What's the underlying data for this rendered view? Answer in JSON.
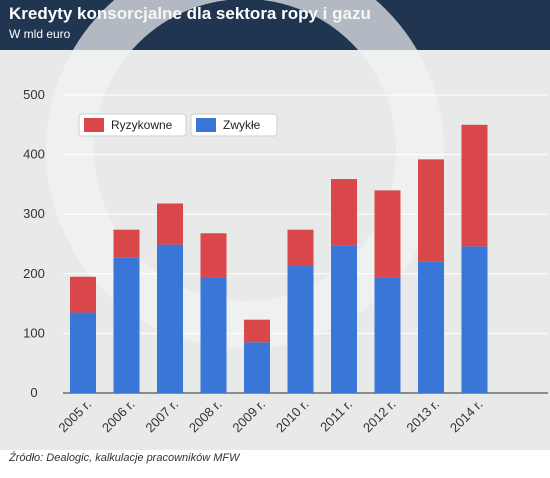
{
  "header": {
    "title": "Kredyty konsorcjalne dla sektora ropy i gazu",
    "subtitle": "W mld euro"
  },
  "footer": {
    "source": "Źródło: Dealogic, kalkulacje pracowników MFW"
  },
  "colors": {
    "header_bg": "#1f3550",
    "plot_bg": "#e8e9e9",
    "ryzykowne": "#d9474a",
    "zwykle": "#3a76d8"
  },
  "chart_data": {
    "type": "bar",
    "stacked": true,
    "categories": [
      "2005 r.",
      "2006 r.",
      "2007 r.",
      "2008 r.",
      "2009 r.",
      "2010 r.",
      "2011 r.",
      "2012 r.",
      "2013 r.",
      "2014 r."
    ],
    "series": [
      {
        "name": "Zwykłe",
        "color": "#3a76d8",
        "values": [
          135,
          227,
          249,
          193,
          85,
          213,
          248,
          193,
          221,
          246
        ]
      },
      {
        "name": "Ryzykowne",
        "color": "#d9474a",
        "values": [
          60,
          47,
          69,
          75,
          38,
          61,
          111,
          147,
          171,
          204
        ]
      }
    ],
    "yticks": [
      0,
      100,
      200,
      300,
      400,
      500
    ],
    "ylim": [
      0,
      500
    ],
    "grid": true,
    "legend": "top-left",
    "legend_order": [
      "Ryzykowne",
      "Zwykłe"
    ]
  }
}
